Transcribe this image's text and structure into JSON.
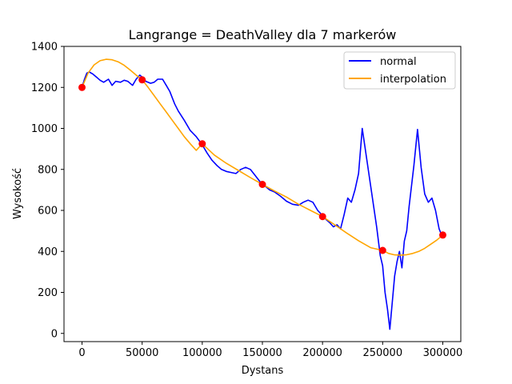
{
  "chart_data": {
    "type": "line",
    "title": "Langrange = DeathValley dla 7 markerów",
    "xlabel": "Dystans",
    "ylabel": "Wysokość",
    "xlim": [
      -15000,
      315000
    ],
    "ylim": [
      -40,
      1400
    ],
    "xticks": [
      0,
      50000,
      100000,
      150000,
      200000,
      250000,
      300000
    ],
    "yticks": [
      0,
      200,
      400,
      600,
      800,
      1000,
      1200,
      1400
    ],
    "grid": false,
    "legend_position": "top-right",
    "colors": {
      "normal": "#0000ff",
      "interpolation": "#ffa500",
      "markers": "#ff0000"
    },
    "series": [
      {
        "name": "normal",
        "x": [
          0,
          2000,
          4000,
          6000,
          9000,
          12000,
          15000,
          18000,
          22000,
          25000,
          28000,
          32000,
          35000,
          38000,
          42000,
          45000,
          48000,
          50000,
          53000,
          57000,
          60000,
          63000,
          67000,
          70000,
          73000,
          77000,
          80000,
          85000,
          90000,
          95000,
          100000,
          104000,
          108000,
          112000,
          116000,
          120000,
          124000,
          128000,
          132000,
          136000,
          140000,
          144000,
          148000,
          152000,
          156000,
          160000,
          165000,
          170000,
          175000,
          180000,
          184000,
          188000,
          192000,
          196000,
          200000,
          203000,
          206000,
          209000,
          212000,
          215000,
          218000,
          221000,
          224000,
          227000,
          230000,
          233000,
          236000,
          239000,
          242000,
          245000,
          248000,
          250000,
          252000,
          254000,
          256000,
          258000,
          260000,
          262000,
          264000,
          266000,
          268000,
          270000,
          272000,
          274000,
          276000,
          279000,
          282000,
          285000,
          288000,
          291000,
          294000,
          297000,
          299000
        ],
        "y": [
          1200,
          1240,
          1270,
          1275,
          1265,
          1250,
          1235,
          1225,
          1240,
          1210,
          1230,
          1225,
          1235,
          1230,
          1210,
          1240,
          1260,
          1250,
          1230,
          1220,
          1225,
          1240,
          1240,
          1210,
          1180,
          1120,
          1085,
          1040,
          990,
          960,
          920,
          880,
          845,
          820,
          800,
          790,
          785,
          780,
          800,
          810,
          800,
          770,
          740,
          720,
          700,
          690,
          670,
          645,
          630,
          625,
          640,
          650,
          640,
          600,
          575,
          555,
          540,
          520,
          530,
          510,
          580,
          660,
          640,
          700,
          780,
          1000,
          880,
          760,
          640,
          520,
          380,
          330,
          200,
          120,
          20,
          150,
          280,
          350,
          400,
          320,
          450,
          500,
          620,
          720,
          820,
          995,
          810,
          680,
          640,
          660,
          600,
          510,
          480
        ]
      },
      {
        "name": "interpolation",
        "x": [
          0,
          5000,
          10000,
          15000,
          20000,
          25000,
          30000,
          35000,
          40000,
          45000,
          50000,
          55000,
          60000,
          65000,
          70000,
          75000,
          80000,
          85000,
          90000,
          95000,
          100000,
          110000,
          120000,
          130000,
          140000,
          150000,
          160000,
          170000,
          180000,
          190000,
          200000,
          210000,
          220000,
          230000,
          240000,
          250000,
          255000,
          260000,
          265000,
          270000,
          275000,
          280000,
          285000,
          290000,
          295000,
          300000
        ],
        "y": [
          1200,
          1270,
          1310,
          1330,
          1337,
          1335,
          1325,
          1308,
          1285,
          1260,
          1237,
          1200,
          1160,
          1120,
          1080,
          1040,
          1000,
          960,
          925,
          893,
          925,
          870,
          830,
          795,
          760,
          727,
          695,
          665,
          630,
          600,
          570,
          530,
          490,
          452,
          418,
          405,
          390,
          383,
          382,
          384,
          390,
          400,
          415,
          435,
          455,
          480
        ]
      }
    ],
    "markers": {
      "x": [
        0,
        50000,
        100000,
        150000,
        200000,
        250000,
        300000
      ],
      "y": [
        1200,
        1237,
        925,
        727,
        570,
        405,
        480
      ]
    }
  }
}
